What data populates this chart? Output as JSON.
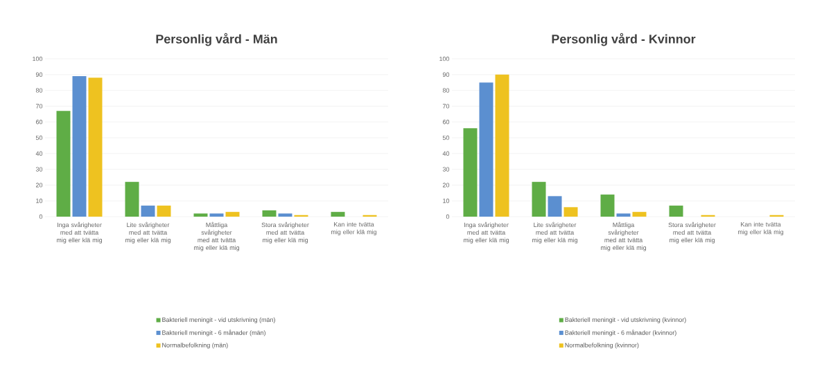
{
  "chart_data": [
    {
      "type": "bar",
      "title": "Personlig vård - Män",
      "categories": [
        "Inga svårigheter med att tvätta mig eller klä mig",
        "Lite svårigheter med att tvätta mig eller klä mig",
        "Måttliga svårigheter med att tvätta mig eller klä mig",
        "Stora svårigheter med att tvätta mig eller klä mig",
        "Kan inte tvätta mig eller klä mig"
      ],
      "series": [
        {
          "name": "Bakteriell meningit - vid utskrivning (män)",
          "color": "#5fad46",
          "values": [
            67,
            22,
            2,
            4,
            3
          ]
        },
        {
          "name": "Bakteriell meningit - 6 månader (män)",
          "color": "#5b8fd0",
          "values": [
            89,
            7,
            2,
            2,
            0
          ]
        },
        {
          "name": "Normalbefolkning (män)",
          "color": "#eec220",
          "values": [
            88,
            7,
            3,
            1,
            1
          ]
        }
      ],
      "ylim": [
        0,
        100
      ],
      "yticks": [
        0,
        10,
        20,
        30,
        40,
        50,
        60,
        70,
        80,
        90,
        100
      ],
      "grid": "y",
      "legend": "bottom"
    },
    {
      "type": "bar",
      "title": "Personlig vård - Kvinnor",
      "categories": [
        "Inga svårigheter med att tvätta mig eller klä mig",
        "Lite svårigheter med att tvätta mig eller klä mig",
        "Måttliga svårigheter med att tvätta mig eller klä mig",
        "Stora svårigheter med att tvätta mig eller klä mig",
        "Kan inte tvätta mig eller klä mig"
      ],
      "series": [
        {
          "name": "Bakteriell meningit - vid utskrivning (kvinnor)",
          "color": "#5fad46",
          "values": [
            56,
            22,
            14,
            7,
            0
          ]
        },
        {
          "name": "Bakteriell meningit - 6 månader (kvinnor)",
          "color": "#5b8fd0",
          "values": [
            85,
            13,
            2,
            0,
            0
          ]
        },
        {
          "name": "Normalbefolkning (kvinnor)",
          "color": "#eec220",
          "values": [
            90,
            6,
            3,
            1,
            1
          ]
        }
      ],
      "ylim": [
        0,
        100
      ],
      "yticks": [
        0,
        10,
        20,
        30,
        40,
        50,
        60,
        70,
        80,
        90,
        100
      ],
      "grid": "y",
      "legend": "bottom"
    }
  ]
}
